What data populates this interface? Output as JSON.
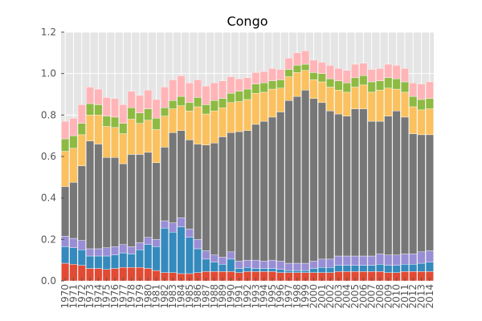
{
  "chart_data": {
    "type": "bar",
    "stacked": true,
    "title": "Congo",
    "xlabel": "",
    "ylabel": "",
    "ylim": [
      0,
      1.2
    ],
    "yticks": [
      0.0,
      0.2,
      0.4,
      0.6,
      0.8,
      1.0,
      1.2
    ],
    "ytick_labels": [
      "0.0",
      "0.2",
      "0.4",
      "0.6",
      "0.8",
      "1.0",
      "1.2"
    ],
    "grid": true,
    "legend": "none",
    "categories": [
      "1970",
      "1971",
      "1972",
      "1973",
      "1974",
      "1975",
      "1976",
      "1977",
      "1978",
      "1979",
      "1980",
      "1981",
      "1982",
      "1983",
      "1984",
      "1985",
      "1986",
      "1987",
      "1988",
      "1989",
      "1990",
      "1991",
      "1992",
      "1993",
      "1994",
      "1995",
      "1996",
      "1997",
      "1998",
      "1999",
      "2000",
      "2001",
      "2002",
      "2003",
      "2004",
      "2005",
      "2006",
      "2007",
      "2008",
      "2009",
      "2010",
      "2011",
      "2012",
      "2013",
      "2014"
    ],
    "colors": [
      "#E24A33",
      "#348ABD",
      "#988ED5",
      "#777777",
      "#FBC15E",
      "#8EBA42",
      "#FFB5B8"
    ],
    "series": [
      {
        "values": [
          0.085,
          0.08,
          0.075,
          0.06,
          0.06,
          0.055,
          0.06,
          0.065,
          0.065,
          0.065,
          0.06,
          0.05,
          0.04,
          0.04,
          0.035,
          0.035,
          0.04,
          0.045,
          0.045,
          0.045,
          0.045,
          0.04,
          0.045,
          0.045,
          0.045,
          0.045,
          0.04,
          0.04,
          0.04,
          0.04,
          0.04,
          0.04,
          0.04,
          0.045,
          0.045,
          0.045,
          0.045,
          0.045,
          0.045,
          0.04,
          0.04,
          0.045,
          0.045,
          0.045,
          0.045
        ]
      },
      {
        "values": [
          0.08,
          0.08,
          0.075,
          0.06,
          0.06,
          0.065,
          0.065,
          0.07,
          0.065,
          0.085,
          0.115,
          0.115,
          0.215,
          0.195,
          0.225,
          0.175,
          0.115,
          0.06,
          0.045,
          0.035,
          0.06,
          0.02,
          0.02,
          0.015,
          0.015,
          0.015,
          0.015,
          0.01,
          0.01,
          0.01,
          0.02,
          0.025,
          0.025,
          0.03,
          0.03,
          0.03,
          0.03,
          0.03,
          0.035,
          0.035,
          0.035,
          0.035,
          0.035,
          0.04,
          0.045
        ]
      },
      {
        "values": [
          0.05,
          0.045,
          0.045,
          0.035,
          0.035,
          0.04,
          0.04,
          0.04,
          0.035,
          0.035,
          0.035,
          0.035,
          0.035,
          0.045,
          0.045,
          0.04,
          0.045,
          0.04,
          0.035,
          0.035,
          0.035,
          0.035,
          0.035,
          0.04,
          0.035,
          0.04,
          0.04,
          0.035,
          0.035,
          0.035,
          0.035,
          0.04,
          0.04,
          0.045,
          0.045,
          0.045,
          0.045,
          0.045,
          0.05,
          0.05,
          0.05,
          0.05,
          0.05,
          0.055,
          0.055
        ]
      },
      {
        "values": [
          0.24,
          0.27,
          0.36,
          0.52,
          0.505,
          0.435,
          0.43,
          0.39,
          0.445,
          0.425,
          0.41,
          0.37,
          0.355,
          0.435,
          0.42,
          0.43,
          0.46,
          0.51,
          0.54,
          0.58,
          0.575,
          0.625,
          0.625,
          0.655,
          0.675,
          0.69,
          0.72,
          0.785,
          0.805,
          0.835,
          0.785,
          0.755,
          0.715,
          0.685,
          0.675,
          0.71,
          0.71,
          0.65,
          0.64,
          0.67,
          0.695,
          0.66,
          0.58,
          0.565,
          0.56
        ]
      },
      {
        "values": [
          0.17,
          0.165,
          0.15,
          0.125,
          0.14,
          0.15,
          0.145,
          0.145,
          0.17,
          0.15,
          0.155,
          0.16,
          0.15,
          0.115,
          0.12,
          0.14,
          0.18,
          0.15,
          0.155,
          0.14,
          0.145,
          0.145,
          0.15,
          0.15,
          0.14,
          0.135,
          0.115,
          0.115,
          0.115,
          0.095,
          0.09,
          0.1,
          0.115,
          0.115,
          0.115,
          0.105,
          0.115,
          0.14,
          0.15,
          0.135,
          0.105,
          0.12,
          0.13,
          0.12,
          0.125
        ]
      },
      {
        "values": [
          0.06,
          0.06,
          0.055,
          0.055,
          0.05,
          0.05,
          0.05,
          0.05,
          0.055,
          0.05,
          0.055,
          0.055,
          0.04,
          0.04,
          0.045,
          0.04,
          0.045,
          0.045,
          0.05,
          0.045,
          0.045,
          0.05,
          0.05,
          0.045,
          0.045,
          0.04,
          0.04,
          0.035,
          0.035,
          0.03,
          0.035,
          0.04,
          0.04,
          0.045,
          0.045,
          0.045,
          0.045,
          0.05,
          0.045,
          0.05,
          0.05,
          0.05,
          0.05,
          0.05,
          0.05
        ]
      },
      {
        "values": [
          0.085,
          0.085,
          0.09,
          0.08,
          0.075,
          0.09,
          0.09,
          0.09,
          0.08,
          0.085,
          0.09,
          0.09,
          0.1,
          0.1,
          0.1,
          0.095,
          0.085,
          0.09,
          0.085,
          0.085,
          0.08,
          0.06,
          0.055,
          0.055,
          0.055,
          0.06,
          0.05,
          0.055,
          0.06,
          0.065,
          0.06,
          0.055,
          0.065,
          0.06,
          0.06,
          0.065,
          0.06,
          0.06,
          0.06,
          0.065,
          0.065,
          0.065,
          0.065,
          0.075,
          0.08
        ]
      }
    ]
  }
}
